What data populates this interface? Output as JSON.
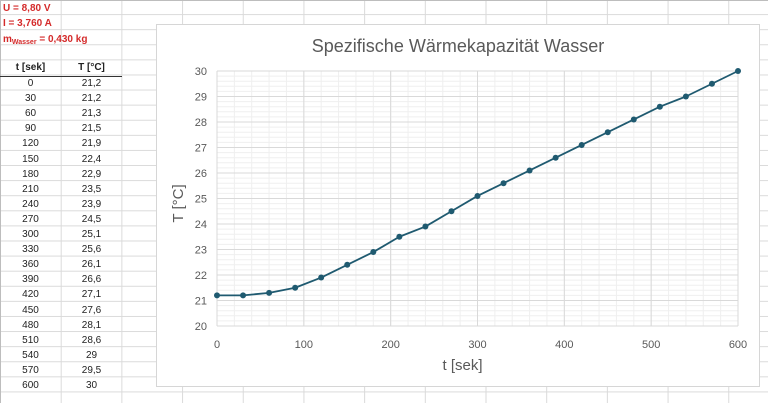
{
  "parameters": {
    "voltage": "U = 8,80 V",
    "current": "I = 3,760 A",
    "mass_prefix": "m",
    "mass_sub": "Wasser",
    "mass_value": " = 0,430 kg"
  },
  "table": {
    "headers": [
      "t [sek]",
      "T [°C]"
    ],
    "rows": [
      [
        "0",
        "21,2"
      ],
      [
        "30",
        "21,2"
      ],
      [
        "60",
        "21,3"
      ],
      [
        "90",
        "21,5"
      ],
      [
        "120",
        "21,9"
      ],
      [
        "150",
        "22,4"
      ],
      [
        "180",
        "22,9"
      ],
      [
        "210",
        "23,5"
      ],
      [
        "240",
        "23,9"
      ],
      [
        "270",
        "24,5"
      ],
      [
        "300",
        "25,1"
      ],
      [
        "330",
        "25,6"
      ],
      [
        "360",
        "26,1"
      ],
      [
        "390",
        "26,6"
      ],
      [
        "420",
        "27,1"
      ],
      [
        "450",
        "27,6"
      ],
      [
        "480",
        "28,1"
      ],
      [
        "510",
        "28,6"
      ],
      [
        "540",
        "29"
      ],
      [
        "570",
        "29,5"
      ],
      [
        "600",
        "30"
      ]
    ]
  },
  "colors": {
    "param_text": "#d42a2a",
    "series_line": "#1f5a70",
    "gridline_major": "#d9d9d9",
    "gridline_minor": "#efefef",
    "axis_text": "#595959"
  },
  "chart_data": {
    "type": "line",
    "title": "Spezifische Wärmekapazität Wasser",
    "xlabel": "t [sek]",
    "ylabel": "T [°C]",
    "xlim": [
      0,
      600
    ],
    "ylim": [
      20,
      30
    ],
    "xticks": [
      0,
      100,
      200,
      300,
      400,
      500,
      600
    ],
    "yticks": [
      20,
      21,
      22,
      23,
      24,
      25,
      26,
      27,
      28,
      29,
      30
    ],
    "grid": true,
    "minor_grid": true,
    "legend": null,
    "series": [
      {
        "name": "T [°C]",
        "x": [
          0,
          30,
          60,
          90,
          120,
          150,
          180,
          210,
          240,
          270,
          300,
          330,
          360,
          390,
          420,
          450,
          480,
          510,
          540,
          570,
          600
        ],
        "values": [
          21.2,
          21.2,
          21.3,
          21.5,
          21.9,
          22.4,
          22.9,
          23.5,
          23.9,
          24.5,
          25.1,
          25.6,
          26.1,
          26.6,
          27.1,
          27.6,
          28.1,
          28.6,
          29.0,
          29.5,
          30.0
        ],
        "marker": "circle"
      }
    ]
  }
}
